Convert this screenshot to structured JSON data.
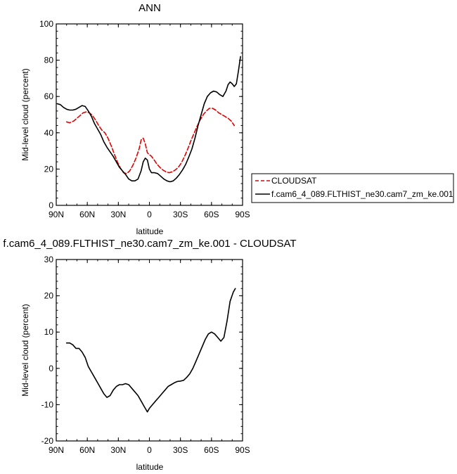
{
  "chart_data": [
    {
      "type": "line",
      "title": "ANN",
      "xlabel": "latitude",
      "ylabel": "Mid-level cloud (percent)",
      "xlim": [
        90,
        -90
      ],
      "ylim": [
        0,
        100
      ],
      "x_ticks": [
        90,
        60,
        30,
        0,
        -30,
        -60,
        -90
      ],
      "x_tick_labels": [
        "90N",
        "60N",
        "30N",
        "0",
        "30S",
        "60S",
        "90S"
      ],
      "y_ticks": [
        0,
        20,
        40,
        60,
        80,
        100
      ],
      "y_tick_labels": [
        "0",
        "20",
        "40",
        "60",
        "80",
        "100"
      ],
      "legend_position": "right",
      "series": [
        {
          "name": "CLOUDSAT",
          "color": "#e00000",
          "dash": "dashed",
          "x": [
            80,
            77,
            73,
            70,
            67,
            64,
            61,
            58,
            55,
            52,
            49,
            46,
            43,
            40,
            37,
            34,
            31,
            28,
            25,
            22,
            19,
            16,
            13,
            10,
            8,
            6,
            4,
            2,
            0,
            -2,
            -4,
            -7,
            -10,
            -13,
            -16,
            -19,
            -22,
            -25,
            -28,
            -31,
            -34,
            -37,
            -40,
            -43,
            -46,
            -49,
            -52,
            -55,
            -58,
            -61,
            -64,
            -67,
            -70,
            -73,
            -76,
            -79,
            -82
          ],
          "y": [
            46,
            45.5,
            46.5,
            48,
            49.5,
            51,
            51.5,
            51,
            49.5,
            47,
            44,
            41.5,
            40,
            37,
            33,
            28.5,
            24,
            20.5,
            18,
            17.5,
            19,
            22,
            26,
            31,
            36,
            37,
            34,
            29,
            28,
            27,
            25.5,
            23,
            21,
            19.5,
            18.5,
            18,
            18.5,
            19.5,
            21,
            23.5,
            27,
            31,
            35.5,
            39.5,
            43.5,
            47,
            50,
            52,
            53.5,
            53.5,
            52.5,
            51,
            50,
            49,
            48,
            46.5,
            44
          ]
        },
        {
          "name": "f.cam6_4_089.FLTHIST_ne30.cam7_zm_ke.001",
          "color": "#000000",
          "dash": "solid",
          "x": [
            89,
            86,
            83,
            80,
            77,
            74,
            71,
            68,
            65,
            62,
            59,
            56,
            53,
            50,
            47,
            44,
            41,
            38,
            35,
            32,
            29,
            26,
            23,
            20,
            17,
            14,
            11,
            8,
            6,
            4,
            2,
            0,
            -2,
            -5,
            -8,
            -11,
            -14,
            -17,
            -20,
            -23,
            -26,
            -29,
            -32,
            -35,
            -38,
            -41,
            -44,
            -47,
            -50,
            -53,
            -56,
            -59,
            -62,
            -65,
            -68,
            -71,
            -74,
            -76,
            -78,
            -80,
            -82,
            -84,
            -86,
            -88
          ],
          "y": [
            56,
            55.5,
            54,
            53,
            52.5,
            52.5,
            53,
            54,
            55,
            54.5,
            52,
            49,
            45,
            42,
            39,
            35,
            32,
            29.5,
            27,
            24,
            21,
            19,
            17,
            14.5,
            13.5,
            13.5,
            14.5,
            19,
            24,
            26,
            25,
            20,
            18,
            18,
            17.5,
            16,
            14.5,
            13.5,
            13,
            13.5,
            15,
            17,
            19.5,
            22.5,
            26.5,
            31,
            37,
            44,
            50,
            56,
            60,
            62,
            63,
            62.5,
            61,
            60,
            63,
            66.5,
            68,
            67,
            65.5,
            67,
            74,
            82
          ]
        }
      ]
    },
    {
      "type": "line",
      "title": "f.cam6_4_089.FLTHIST_ne30.cam7_zm_ke.001 - CLOUDSAT",
      "xlabel": "latitude",
      "ylabel": "Mid-level cloud (percent)",
      "xlim": [
        90,
        -90
      ],
      "ylim": [
        -20,
        30
      ],
      "x_ticks": [
        90,
        60,
        30,
        0,
        -30,
        -60,
        -90
      ],
      "x_tick_labels": [
        "90N",
        "60N",
        "30N",
        "0",
        "30S",
        "60S",
        "90S"
      ],
      "y_ticks": [
        -20,
        -10,
        0,
        10,
        20,
        30
      ],
      "y_tick_labels": [
        "-20",
        "-10",
        "0",
        "10",
        "20",
        "30"
      ],
      "series": [
        {
          "color": "#000000",
          "dash": "solid",
          "x": [
            80,
            77,
            74,
            71,
            68,
            65,
            62,
            59,
            56,
            53,
            50,
            47,
            44,
            41,
            38,
            35,
            32,
            29,
            26,
            23,
            20,
            17,
            14,
            11,
            8,
            5,
            2,
            0,
            -3,
            -6,
            -9,
            -12,
            -15,
            -18,
            -21,
            -24,
            -27,
            -30,
            -33,
            -36,
            -39,
            -42,
            -45,
            -48,
            -51,
            -54,
            -57,
            -60,
            -63,
            -66,
            -69,
            -72,
            -75,
            -78,
            -81,
            -83
          ],
          "y": [
            7,
            7,
            6.5,
            5.5,
            5.5,
            4.5,
            3,
            0.5,
            -1,
            -2.5,
            -4,
            -5.5,
            -7,
            -8,
            -7.5,
            -6,
            -5,
            -4.5,
            -4.5,
            -4.2,
            -4.5,
            -5.5,
            -6.5,
            -7.5,
            -9,
            -10.5,
            -12,
            -11,
            -10,
            -9,
            -8,
            -7,
            -6,
            -5,
            -4.5,
            -4,
            -3.6,
            -3.5,
            -3.3,
            -2.5,
            -1.5,
            0,
            2,
            4,
            6,
            8,
            9.5,
            10,
            9.5,
            8.5,
            7.5,
            8.5,
            13,
            18.5,
            21,
            22
          ]
        }
      ]
    }
  ]
}
